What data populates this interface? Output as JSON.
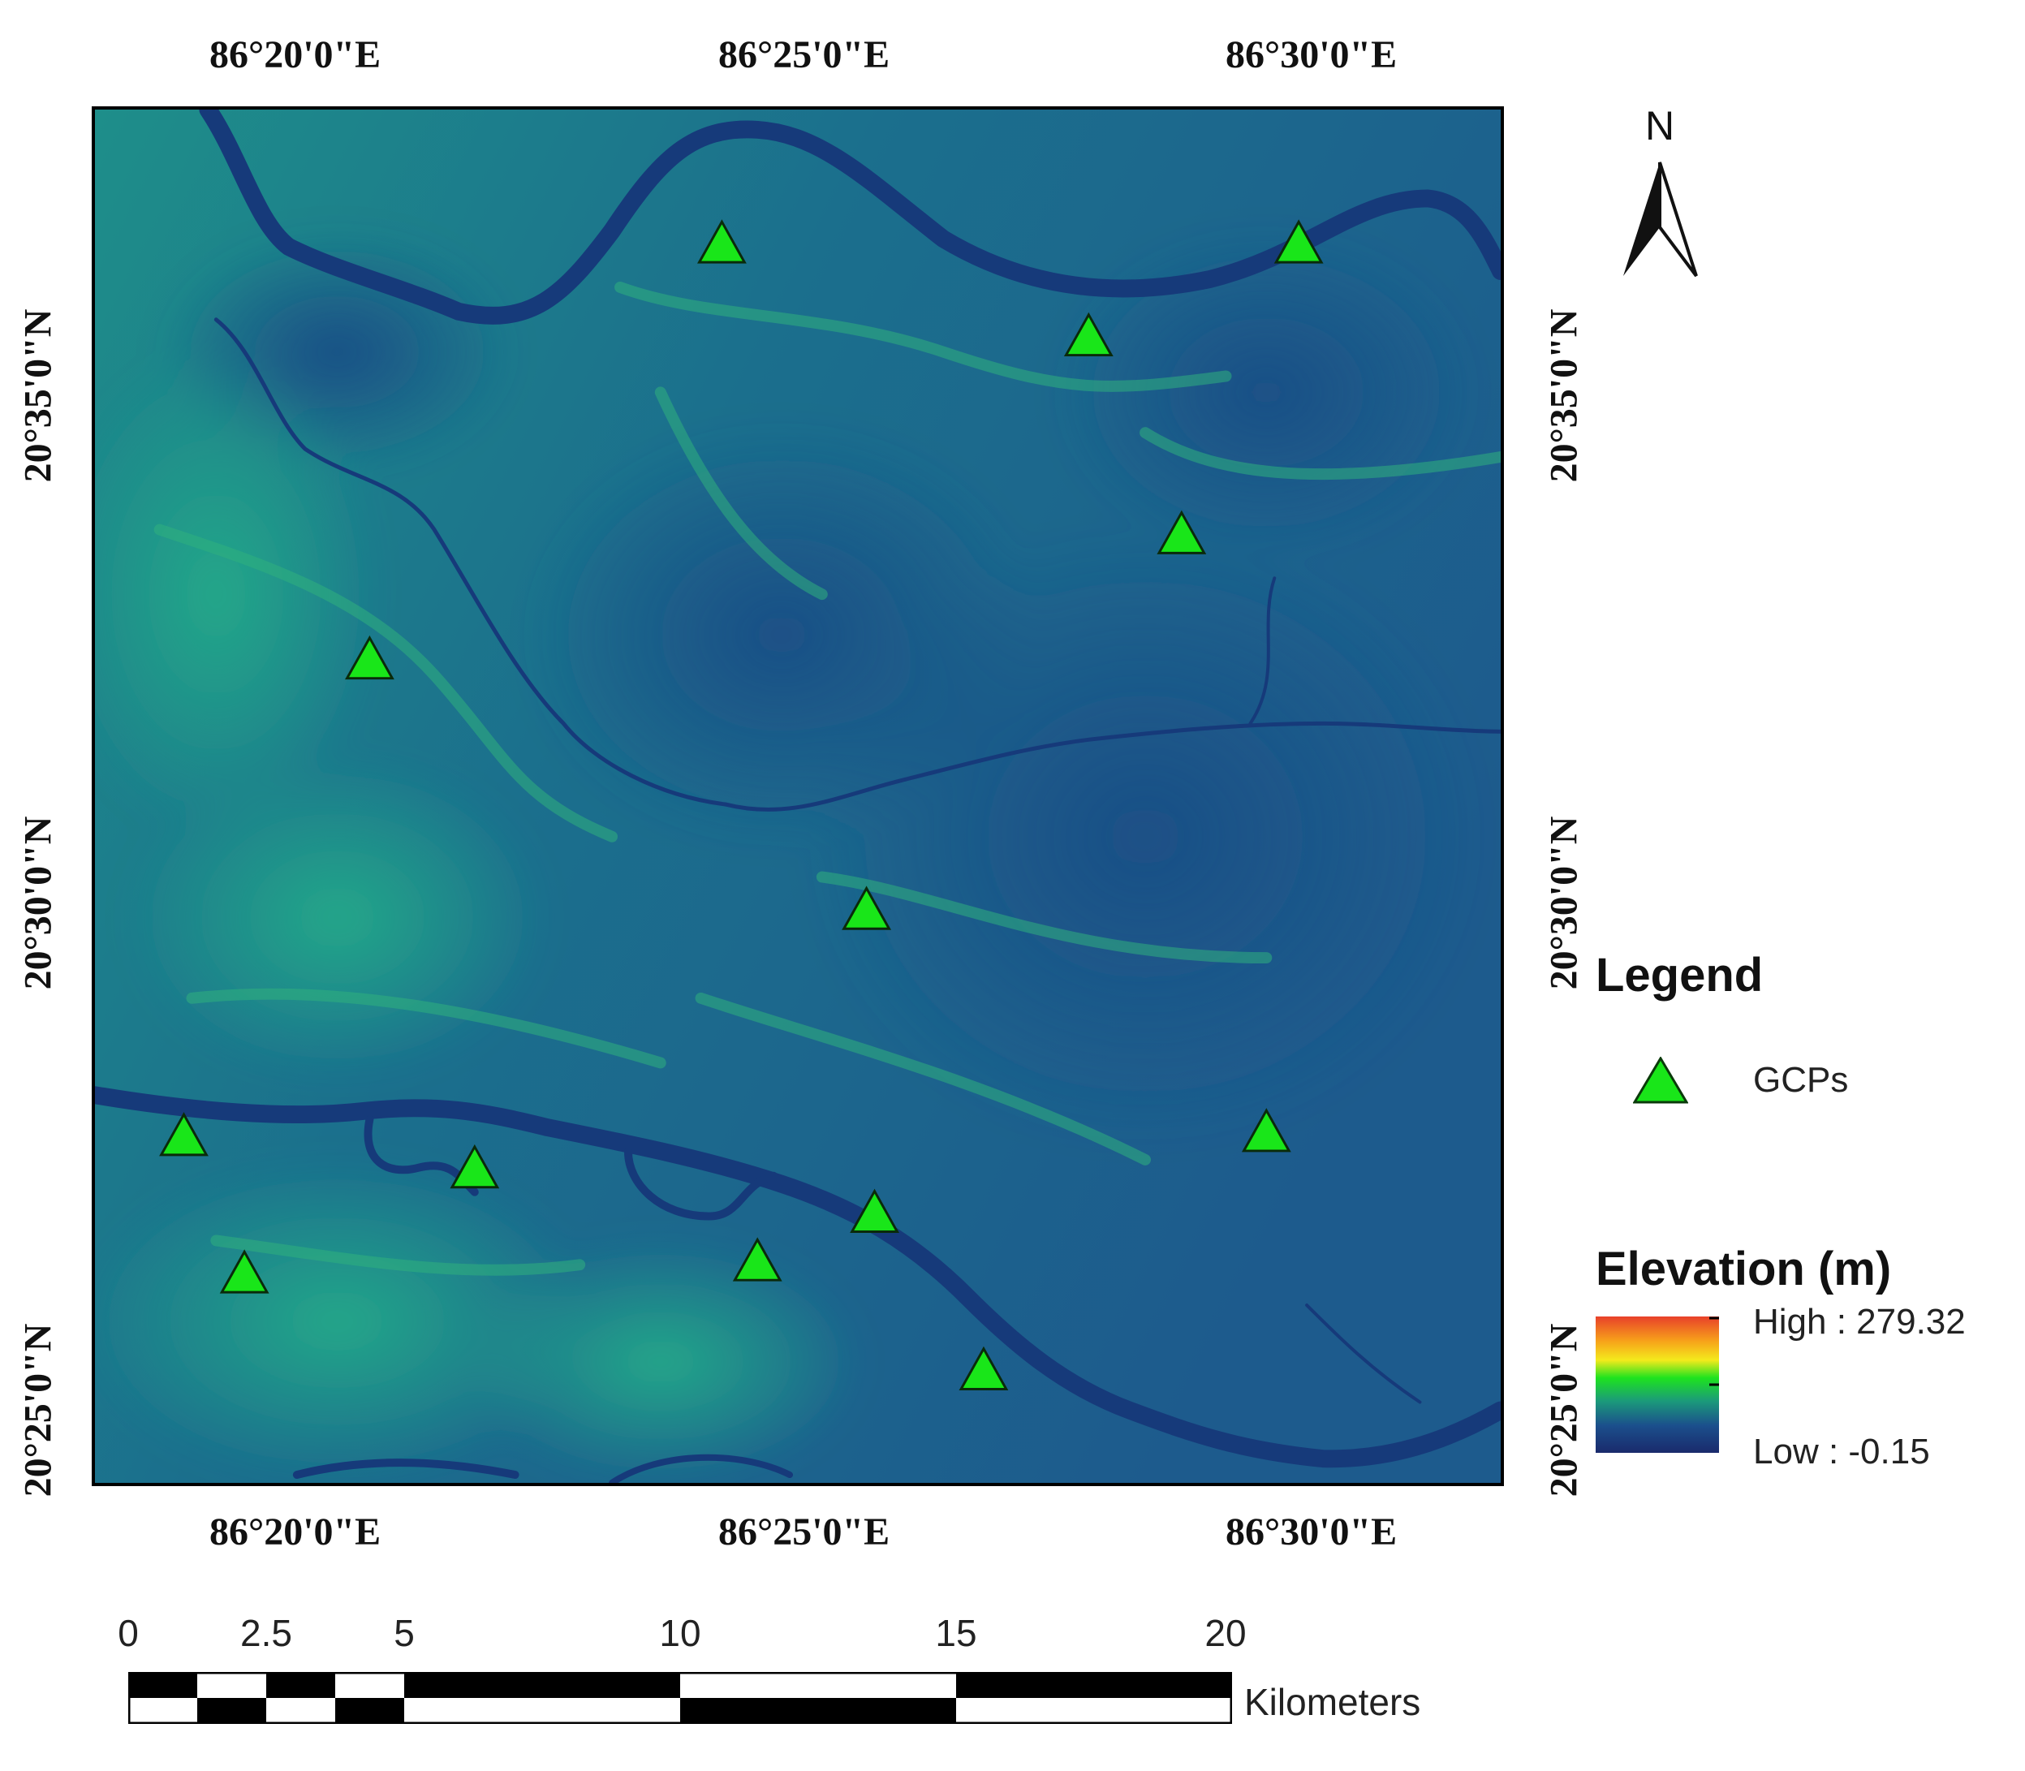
{
  "map": {
    "top_lon_labels": [
      "86°20'0\"E",
      "86°25'0\"E",
      "86°30'0\"E"
    ],
    "bottom_lon_labels": [
      "86°20'0\"E",
      "86°25'0\"E",
      "86°30'0\"E"
    ],
    "left_lat_labels": [
      "20°35'0\"N",
      "20°30'0\"N",
      "20°25'0\"N"
    ],
    "right_lat_labels": [
      "20°35'0\"N",
      "20°30'0\"N",
      "20°25'0\"N"
    ],
    "gcp_count": 14,
    "colors": {
      "gcp_fill": "#19e619",
      "water": "#163a7a",
      "lowland": "#1f5a8c",
      "upland": "#1e9a8a"
    }
  },
  "north_arrow": {
    "label": "N"
  },
  "legend": {
    "title": "Legend",
    "gcp_label": "GCPs"
  },
  "elevation": {
    "title": "Elevation (m)",
    "high_label": "High : 279.32",
    "low_label": "Low : -0.15",
    "ramp_colors": [
      "#e8402a",
      "#f7a21a",
      "#f4ea1c",
      "#1ee31e",
      "#1b9a7a",
      "#1b4f8c",
      "#1a2a6c"
    ]
  },
  "scale": {
    "ticks": [
      "0",
      "2.5",
      "5",
      "10",
      "15",
      "20"
    ],
    "unit": "Kilometers"
  }
}
